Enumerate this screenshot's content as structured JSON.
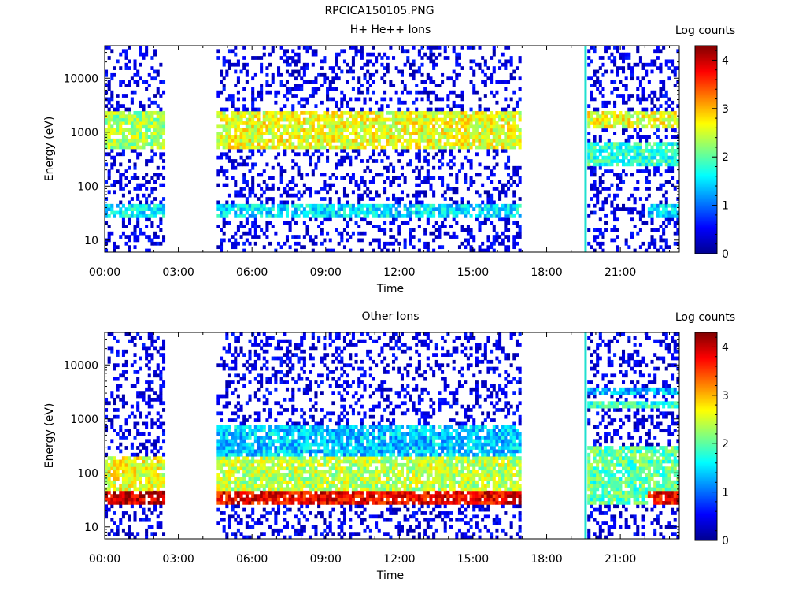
{
  "figure_title": "RPCICA150105.PNG",
  "chart_data": [
    {
      "type": "heatmap",
      "title": "H+ He++ Ions",
      "xlabel": "Time",
      "ylabel": "Energy (eV)",
      "y_scale": "log",
      "ylim": [
        6,
        40000
      ],
      "x_range_hours": [
        0,
        23.4
      ],
      "xticks": [
        "00:00",
        "03:00",
        "06:00",
        "09:00",
        "12:00",
        "15:00",
        "18:00",
        "21:00"
      ],
      "yticks": [
        {
          "label": "10",
          "value": 10
        },
        {
          "label": "100",
          "value": 100
        },
        {
          "label": "1000",
          "value": 1000
        },
        {
          "label": "10000",
          "value": 10000
        }
      ],
      "colorbar": {
        "label": "Log counts",
        "ticks": [
          "0",
          "1",
          "2",
          "3",
          "4"
        ],
        "range": [
          0,
          4.3
        ]
      },
      "data_gaps": [
        [
          2.35,
          4.5
        ],
        [
          16.9,
          19.6
        ]
      ],
      "bands": [
        {
          "t0": 0,
          "t1": 2.35,
          "e_low": 500,
          "e_high": 2500,
          "level": 2.3
        },
        {
          "t0": 0,
          "t1": 2.35,
          "e_low": 25,
          "e_high": 50,
          "level": 1.6
        },
        {
          "t0": 4.5,
          "t1": 16.9,
          "e_low": 500,
          "e_high": 2500,
          "level": 2.6
        },
        {
          "t0": 4.5,
          "t1": 16.9,
          "e_low": 25,
          "e_high": 50,
          "level": 1.5
        },
        {
          "t0": 19.6,
          "t1": 23.4,
          "e_low": 1200,
          "e_high": 2500,
          "level": 2.6
        },
        {
          "t0": 19.6,
          "t1": 23.4,
          "e_low": 250,
          "e_high": 700,
          "level": 1.8
        },
        {
          "t0": 22.0,
          "t1": 23.4,
          "e_low": 25,
          "e_high": 45,
          "level": 1.5
        }
      ],
      "spike_hour": 19.6
    },
    {
      "type": "heatmap",
      "title": "Other Ions",
      "xlabel": "Time",
      "ylabel": "Energy (eV)",
      "y_scale": "log",
      "ylim": [
        6,
        40000
      ],
      "x_range_hours": [
        0,
        23.4
      ],
      "xticks": [
        "00:00",
        "03:00",
        "06:00",
        "09:00",
        "12:00",
        "15:00",
        "18:00",
        "21:00"
      ],
      "yticks": [
        {
          "label": "10",
          "value": 10
        },
        {
          "label": "100",
          "value": 100
        },
        {
          "label": "1000",
          "value": 1000
        },
        {
          "label": "10000",
          "value": 10000
        }
      ],
      "colorbar": {
        "label": "Log counts",
        "ticks": [
          "0",
          "1",
          "2",
          "3",
          "4"
        ],
        "range": [
          0,
          4.3
        ]
      },
      "data_gaps": [
        [
          2.35,
          4.5
        ],
        [
          16.9,
          19.6
        ]
      ],
      "bands": [
        {
          "t0": 0,
          "t1": 2.35,
          "e_low": 25,
          "e_high": 45,
          "level": 4.0
        },
        {
          "t0": 0,
          "t1": 2.35,
          "e_low": 45,
          "e_high": 200,
          "level": 2.6
        },
        {
          "t0": 4.5,
          "t1": 16.9,
          "e_low": 25,
          "e_high": 45,
          "level": 3.8
        },
        {
          "t0": 4.5,
          "t1": 16.9,
          "e_low": 45,
          "e_high": 200,
          "level": 2.4
        },
        {
          "t0": 4.5,
          "t1": 16.9,
          "e_low": 200,
          "e_high": 800,
          "level": 1.4
        },
        {
          "t0": 19.6,
          "t1": 23.4,
          "e_low": 25,
          "e_high": 300,
          "level": 2.0
        },
        {
          "t0": 22.0,
          "t1": 23.4,
          "e_low": 25,
          "e_high": 45,
          "level": 3.8
        },
        {
          "t0": 19.6,
          "t1": 23.4,
          "e_low": 1700,
          "e_high": 2200,
          "level": 1.8
        },
        {
          "t0": 19.6,
          "t1": 23.4,
          "e_low": 3000,
          "e_high": 3600,
          "level": 1.3
        }
      ],
      "spike_hour": 19.6
    }
  ]
}
